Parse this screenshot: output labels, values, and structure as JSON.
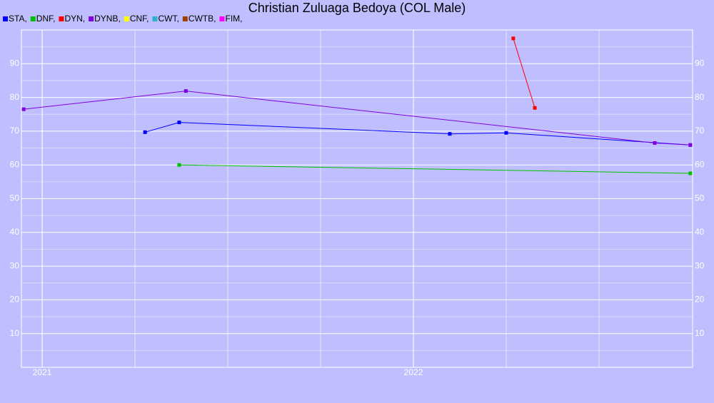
{
  "chart_data": {
    "type": "line",
    "title": "Christian Zuluaga Bedoya (COL Male)",
    "xlim": [
      2020.944,
      2022.752
    ],
    "xticks": [
      2021,
      2022
    ],
    "xgrid": [
      2021,
      2021.25,
      2021.5,
      2021.75,
      2022,
      2022.25,
      2022.5
    ],
    "ylim": [
      0,
      100
    ],
    "yticks": [
      10,
      20,
      30,
      40,
      50,
      60,
      70,
      80,
      90
    ],
    "yminor": [
      5,
      15,
      25,
      35,
      45,
      55,
      65,
      75,
      85,
      95
    ],
    "grid": true,
    "legend": "top-left",
    "series": [
      {
        "name": "STA,",
        "color": "#0000ff",
        "x": [
          2021.277,
          2021.369,
          2022.098,
          2022.25,
          2022.746
        ],
        "values": [
          69.7,
          72.6,
          69.2,
          69.5,
          65.9
        ]
      },
      {
        "name": "DNF,",
        "color": "#00c000",
        "x": [
          2021.369,
          2022.746
        ],
        "values": [
          60,
          57.5
        ]
      },
      {
        "name": "DYN,",
        "color": "#ff0000",
        "x": [
          2022.269,
          2022.327
        ],
        "values": [
          97.5,
          76.9
        ]
      },
      {
        "name": "DYNB,",
        "color": "#8000e0",
        "x": [
          2020.95,
          2021.387,
          2022.65,
          2022.746
        ],
        "values": [
          76.5,
          81.9,
          66.5,
          65.9
        ]
      },
      {
        "name": "CNF,",
        "color": "#ffff00",
        "x": [],
        "values": []
      },
      {
        "name": "CWT,",
        "color": "#30b0d0",
        "x": [],
        "values": []
      },
      {
        "name": "CWTB,",
        "color": "#a04000",
        "x": [],
        "values": []
      },
      {
        "name": "FIM,",
        "color": "#ff00ff",
        "x": [],
        "values": []
      }
    ]
  }
}
